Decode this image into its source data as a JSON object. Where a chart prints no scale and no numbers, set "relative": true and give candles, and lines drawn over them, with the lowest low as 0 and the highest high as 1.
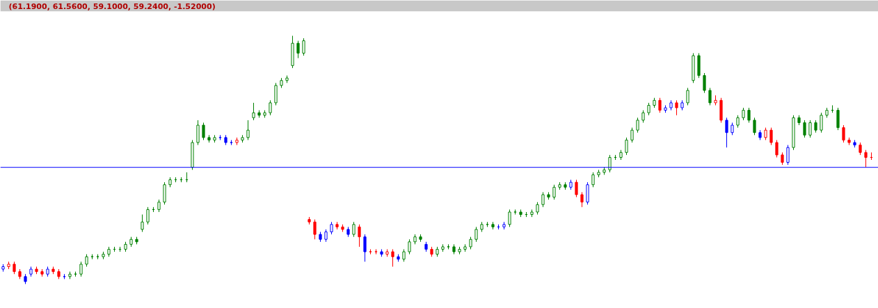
{
  "chart_data": {
    "type": "candlestick",
    "title": "(61.1900, 61.5600, 59.1000, 59.2400, -1.52000)",
    "relative": true,
    "categories": [
      null,
      null,
      null,
      null,
      null,
      null,
      null,
      null,
      null,
      null,
      null,
      null,
      null,
      null,
      null,
      null,
      null,
      null,
      null,
      null,
      null,
      null,
      null,
      null,
      null,
      null,
      null,
      null,
      null,
      null,
      null,
      null,
      null,
      null,
      null,
      null,
      null,
      null,
      null,
      null,
      null,
      null,
      null,
      null,
      null,
      null,
      null,
      null,
      null,
      null,
      null,
      null,
      null,
      null,
      null,
      null,
      null,
      null,
      null,
      null,
      null,
      null,
      null,
      null,
      null,
      null,
      null,
      null,
      null,
      null,
      null,
      null,
      null,
      null,
      null,
      null,
      null,
      null,
      null,
      null,
      null,
      null,
      null,
      null,
      null,
      null,
      null,
      null,
      null,
      null,
      null,
      null,
      null,
      null,
      null,
      null,
      null,
      null,
      null,
      null,
      null,
      null,
      null,
      null,
      null,
      null,
      null,
      null,
      null,
      null,
      null,
      null,
      null,
      null,
      null,
      null,
      null,
      null,
      null,
      null,
      null,
      null,
      null,
      null,
      null,
      null,
      null,
      null,
      null,
      null,
      null,
      null,
      null,
      null,
      null,
      null,
      null,
      null,
      null,
      null,
      null,
      null,
      null,
      null,
      null,
      null,
      null,
      null,
      null,
      null,
      null,
      null,
      null,
      null,
      null,
      null,
      null
    ],
    "ohlc": [
      [
        0.06,
        0.08,
        0.05,
        0.07
      ],
      [
        0.07,
        0.09,
        0.06,
        0.08
      ],
      [
        0.08,
        0.09,
        0.04,
        0.05
      ],
      [
        0.05,
        0.06,
        0.02,
        0.03
      ],
      [
        0.03,
        0.04,
        0,
        0.01
      ],
      [
        0.04,
        0.07,
        0.03,
        0.06
      ],
      [
        0.06,
        0.07,
        0.04,
        0.05
      ],
      [
        0.05,
        0.06,
        0.03,
        0.04
      ],
      [
        0.04,
        0.07,
        0.03,
        0.06
      ],
      [
        0.06,
        0.07,
        0.04,
        0.05
      ],
      [
        0.05,
        0.06,
        0.02,
        0.03
      ],
      [
        0.03,
        0.04,
        0.02,
        0.03
      ],
      [
        0.03,
        0.05,
        0.02,
        0.04
      ],
      [
        0.04,
        0.05,
        0.03,
        0.04
      ],
      [
        0.04,
        0.09,
        0.03,
        0.08
      ],
      [
        0.08,
        0.12,
        0.07,
        0.11
      ],
      [
        0.11,
        0.12,
        0.1,
        0.11
      ],
      [
        0.11,
        0.12,
        0.1,
        0.11
      ],
      [
        0.11,
        0.13,
        0.1,
        0.12
      ],
      [
        0.12,
        0.15,
        0.11,
        0.14
      ],
      [
        0.14,
        0.15,
        0.13,
        0.14
      ],
      [
        0.14,
        0.15,
        0.13,
        0.14
      ],
      [
        0.14,
        0.17,
        0.13,
        0.16
      ],
      [
        0.16,
        0.19,
        0.15,
        0.18
      ],
      [
        0.18,
        0.19,
        0.16,
        0.17
      ],
      [
        0.22,
        0.28,
        0.21,
        0.25
      ],
      [
        0.25,
        0.31,
        0.24,
        0.3
      ],
      [
        0.3,
        0.31,
        0.29,
        0.3
      ],
      [
        0.3,
        0.34,
        0.29,
        0.33
      ],
      [
        0.33,
        0.41,
        0.32,
        0.4
      ],
      [
        0.4,
        0.43,
        0.39,
        0.42
      ],
      [
        0.42,
        0.43,
        0.41,
        0.42
      ],
      [
        0.42,
        0.43,
        0.41,
        0.42
      ],
      [
        0.42,
        0.45,
        0.41,
        0.42
      ],
      [
        0.47,
        0.58,
        0.46,
        0.57
      ],
      [
        0.57,
        0.66,
        0.56,
        0.64
      ],
      [
        0.64,
        0.65,
        0.58,
        0.59
      ],
      [
        0.59,
        0.6,
        0.57,
        0.58
      ],
      [
        0.58,
        0.6,
        0.57,
        0.59
      ],
      [
        0.59,
        0.6,
        0.58,
        0.59
      ],
      [
        0.59,
        0.6,
        0.56,
        0.57
      ],
      [
        0.57,
        0.58,
        0.56,
        0.57
      ],
      [
        0.57,
        0.59,
        0.56,
        0.58
      ],
      [
        0.58,
        0.6,
        0.57,
        0.59
      ],
      [
        0.59,
        0.66,
        0.58,
        0.62
      ],
      [
        0.67,
        0.73,
        0.66,
        0.69
      ],
      [
        0.69,
        0.7,
        0.67,
        0.68
      ],
      [
        0.68,
        0.7,
        0.67,
        0.69
      ],
      [
        0.69,
        0.74,
        0.68,
        0.73
      ],
      [
        0.73,
        0.81,
        0.72,
        0.8
      ],
      [
        0.8,
        0.83,
        0.79,
        0.82
      ],
      [
        0.82,
        0.84,
        0.81,
        0.83
      ],
      [
        0.88,
        1,
        0.87,
        0.97
      ],
      [
        0.97,
        0.98,
        0.91,
        0.93
      ],
      [
        0.93,
        0.99,
        0.92,
        0.98
      ],
      [
        0.26,
        0.27,
        0.24,
        0.25
      ],
      [
        0.25,
        0.26,
        0.18,
        0.2
      ],
      [
        0.2,
        0.21,
        0.17,
        0.18
      ],
      [
        0.18,
        0.22,
        0.17,
        0.21
      ],
      [
        0.21,
        0.25,
        0.2,
        0.24
      ],
      [
        0.24,
        0.25,
        0.22,
        0.23
      ],
      [
        0.23,
        0.24,
        0.21,
        0.22
      ],
      [
        0.22,
        0.23,
        0.19,
        0.2
      ],
      [
        0.2,
        0.25,
        0.19,
        0.24
      ],
      [
        0.23,
        0.24,
        0.15,
        0.19
      ],
      [
        0.19,
        0.2,
        0.09,
        0.13
      ],
      [
        0.13,
        0.14,
        0.12,
        0.13
      ],
      [
        0.13,
        0.14,
        0.12,
        0.13
      ],
      [
        0.13,
        0.14,
        0.11,
        0.12
      ],
      [
        0.12,
        0.14,
        0.11,
        0.13
      ],
      [
        0.13,
        0.14,
        0.07,
        0.11
      ],
      [
        0.11,
        0.12,
        0.09,
        0.1
      ],
      [
        0.1,
        0.14,
        0.09,
        0.13
      ],
      [
        0.13,
        0.18,
        0.12,
        0.17
      ],
      [
        0.17,
        0.2,
        0.16,
        0.19
      ],
      [
        0.19,
        0.2,
        0.17,
        0.18
      ],
      [
        0.16,
        0.17,
        0.13,
        0.14
      ],
      [
        0.14,
        0.15,
        0.11,
        0.12
      ],
      [
        0.12,
        0.15,
        0.11,
        0.14
      ],
      [
        0.14,
        0.16,
        0.13,
        0.15
      ],
      [
        0.15,
        0.16,
        0.14,
        0.15
      ],
      [
        0.15,
        0.16,
        0.12,
        0.13
      ],
      [
        0.13,
        0.15,
        0.12,
        0.14
      ],
      [
        0.14,
        0.16,
        0.13,
        0.15
      ],
      [
        0.15,
        0.19,
        0.14,
        0.18
      ],
      [
        0.18,
        0.23,
        0.17,
        0.22
      ],
      [
        0.22,
        0.25,
        0.21,
        0.24
      ],
      [
        0.24,
        0.25,
        0.23,
        0.24
      ],
      [
        0.24,
        0.25,
        0.22,
        0.23
      ],
      [
        0.23,
        0.24,
        0.22,
        0.23
      ],
      [
        0.23,
        0.25,
        0.22,
        0.24
      ],
      [
        0.24,
        0.3,
        0.23,
        0.29
      ],
      [
        0.29,
        0.3,
        0.28,
        0.29
      ],
      [
        0.29,
        0.3,
        0.27,
        0.28
      ],
      [
        0.28,
        0.29,
        0.27,
        0.28
      ],
      [
        0.28,
        0.3,
        0.27,
        0.29
      ],
      [
        0.29,
        0.33,
        0.28,
        0.32
      ],
      [
        0.32,
        0.37,
        0.31,
        0.36
      ],
      [
        0.36,
        0.37,
        0.34,
        0.35
      ],
      [
        0.35,
        0.4,
        0.34,
        0.39
      ],
      [
        0.39,
        0.41,
        0.38,
        0.4
      ],
      [
        0.4,
        0.41,
        0.38,
        0.39
      ],
      [
        0.39,
        0.42,
        0.38,
        0.41
      ],
      [
        0.41,
        0.42,
        0.35,
        0.36
      ],
      [
        0.36,
        0.37,
        0.31,
        0.33
      ],
      [
        0.33,
        0.41,
        0.32,
        0.4
      ],
      [
        0.4,
        0.45,
        0.39,
        0.44
      ],
      [
        0.44,
        0.46,
        0.43,
        0.45
      ],
      [
        0.45,
        0.47,
        0.44,
        0.46
      ],
      [
        0.46,
        0.52,
        0.45,
        0.51
      ],
      [
        0.51,
        0.52,
        0.5,
        0.51
      ],
      [
        0.51,
        0.54,
        0.5,
        0.53
      ],
      [
        0.53,
        0.59,
        0.52,
        0.58
      ],
      [
        0.58,
        0.63,
        0.57,
        0.62
      ],
      [
        0.62,
        0.67,
        0.61,
        0.66
      ],
      [
        0.66,
        0.7,
        0.65,
        0.69
      ],
      [
        0.69,
        0.73,
        0.68,
        0.72
      ],
      [
        0.72,
        0.75,
        0.71,
        0.74
      ],
      [
        0.74,
        0.75,
        0.69,
        0.7
      ],
      [
        0.7,
        0.72,
        0.69,
        0.71
      ],
      [
        0.71,
        0.74,
        0.7,
        0.73
      ],
      [
        0.73,
        0.74,
        0.68,
        0.71
      ],
      [
        0.71,
        0.74,
        0.7,
        0.73
      ],
      [
        0.73,
        0.79,
        0.72,
        0.78
      ],
      [
        0.82,
        0.93,
        0.81,
        0.92
      ],
      [
        0.92,
        0.93,
        0.83,
        0.84
      ],
      [
        0.84,
        0.85,
        0.77,
        0.78
      ],
      [
        0.78,
        0.79,
        0.72,
        0.73
      ],
      [
        0.73,
        0.76,
        0.72,
        0.74
      ],
      [
        0.74,
        0.75,
        0.65,
        0.66
      ],
      [
        0.66,
        0.67,
        0.55,
        0.61
      ],
      [
        0.61,
        0.65,
        0.6,
        0.64
      ],
      [
        0.64,
        0.68,
        0.63,
        0.67
      ],
      [
        0.67,
        0.71,
        0.66,
        0.7
      ],
      [
        0.7,
        0.71,
        0.65,
        0.66
      ],
      [
        0.66,
        0.67,
        0.6,
        0.61
      ],
      [
        0.61,
        0.62,
        0.58,
        0.59
      ],
      [
        0.59,
        0.63,
        0.58,
        0.62
      ],
      [
        0.62,
        0.63,
        0.56,
        0.57
      ],
      [
        0.57,
        0.58,
        0.51,
        0.52
      ],
      [
        0.52,
        0.53,
        0.48,
        0.49
      ],
      [
        0.49,
        0.56,
        0.48,
        0.55
      ],
      [
        0.55,
        0.68,
        0.54,
        0.67
      ],
      [
        0.67,
        0.68,
        0.64,
        0.65
      ],
      [
        0.65,
        0.66,
        0.59,
        0.6
      ],
      [
        0.6,
        0.66,
        0.59,
        0.65
      ],
      [
        0.65,
        0.66,
        0.61,
        0.62
      ],
      [
        0.62,
        0.69,
        0.61,
        0.68
      ],
      [
        0.68,
        0.71,
        0.67,
        0.7
      ],
      [
        0.7,
        0.72,
        0.69,
        0.7
      ],
      [
        0.7,
        0.71,
        0.62,
        0.63
      ],
      [
        0.63,
        0.64,
        0.57,
        0.58
      ],
      [
        0.58,
        0.59,
        0.56,
        0.57
      ],
      [
        0.57,
        0.58,
        0.55,
        0.56
      ],
      [
        0.56,
        0.57,
        0.52,
        0.53
      ],
      [
        0.53,
        0.54,
        0.47,
        0.51
      ],
      [
        0.51,
        0.53,
        0.5,
        0.51
      ]
    ],
    "colors": [
      "#0000ff",
      "#ff0000",
      "#ff0000",
      "#ff0000",
      "#0000ff",
      "#0000ff",
      "#ff0000",
      "#ff0000",
      "#0000ff",
      "#ff0000",
      "#ff0000",
      "#0000ff",
      "#008000",
      "#008000",
      "#008000",
      "#008000",
      "#008000",
      "#008000",
      "#008000",
      "#008000",
      "#008000",
      "#008000",
      "#008000",
      "#008000",
      "#008000",
      "#008000",
      "#008000",
      "#008000",
      "#008000",
      "#008000",
      "#008000",
      "#008000",
      "#008000",
      "#008000",
      "#008000",
      "#008000",
      "#008000",
      "#008000",
      "#008000",
      "#0000ff",
      "#0000ff",
      "#0000ff",
      "#ff0000",
      "#008000",
      "#008000",
      "#008000",
      "#008000",
      "#008000",
      "#008000",
      "#008000",
      "#008000",
      "#008000",
      "#008000",
      "#008000",
      "#008000",
      "#ff0000",
      "#ff0000",
      "#0000ff",
      "#0000ff",
      "#0000ff",
      "#ff0000",
      "#ff0000",
      "#0000ff",
      "#008000",
      "#ff0000",
      "#0000ff",
      "#ff0000",
      "#ff0000",
      "#0000ff",
      "#ff0000",
      "#ff0000",
      "#0000ff",
      "#008000",
      "#008000",
      "#008000",
      "#008000",
      "#0000ff",
      "#ff0000",
      "#008000",
      "#008000",
      "#008000",
      "#008000",
      "#008000",
      "#008000",
      "#008000",
      "#008000",
      "#008000",
      "#008000",
      "#008000",
      "#0000ff",
      "#0000ff",
      "#008000",
      "#008000",
      "#008000",
      "#008000",
      "#008000",
      "#008000",
      "#008000",
      "#008000",
      "#008000",
      "#008000",
      "#008000",
      "#0000ff",
      "#ff0000",
      "#ff0000",
      "#0000ff",
      "#008000",
      "#008000",
      "#008000",
      "#008000",
      "#008000",
      "#008000",
      "#008000",
      "#008000",
      "#008000",
      "#008000",
      "#008000",
      "#008000",
      "#ff0000",
      "#0000ff",
      "#0000ff",
      "#ff0000",
      "#0000ff",
      "#008000",
      "#008000",
      "#008000",
      "#008000",
      "#008000",
      "#ff0000",
      "#ff0000",
      "#0000ff",
      "#0000ff",
      "#008000",
      "#008000",
      "#008000",
      "#008000",
      "#0000ff",
      "#ff0000",
      "#ff0000",
      "#ff0000",
      "#ff0000",
      "#0000ff",
      "#008000",
      "#008000",
      "#008000",
      "#008000",
      "#008000",
      "#008000",
      "#008000",
      "#008000",
      "#008000",
      "#ff0000",
      "#ff0000",
      "#0000ff",
      "#ff0000",
      "#ff0000",
      "#ff0000"
    ],
    "ref_lines": [
      {
        "axis": "y",
        "value": 0.47,
        "color": "#0000ff"
      }
    ]
  }
}
